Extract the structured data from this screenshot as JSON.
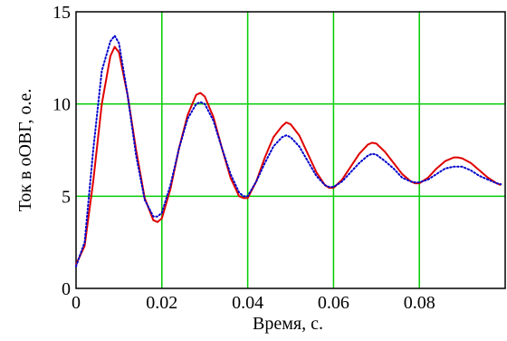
{
  "chart_data": {
    "type": "line",
    "xlabel": "Время, с.",
    "ylabel": "Ток в оОВГ, о.е.",
    "xlim": [
      0,
      0.1
    ],
    "ylim": [
      0,
      15
    ],
    "x_ticks": [
      0,
      0.02,
      0.04,
      0.06,
      0.08
    ],
    "x_tick_labels": [
      "0",
      "0.02",
      "0.04",
      "0.06",
      "0.08"
    ],
    "y_ticks": [
      0,
      5,
      10,
      15
    ],
    "y_tick_labels": [
      "0",
      "5",
      "10",
      "15"
    ],
    "grid": true,
    "colors": {
      "grid": "#00cc00",
      "frame": "#000000"
    },
    "series": [
      {
        "style": "solid",
        "color": "#e00000",
        "x": [
          0,
          0.002,
          0.004,
          0.006,
          0.008,
          0.009,
          0.01,
          0.012,
          0.014,
          0.016,
          0.018,
          0.019,
          0.02,
          0.022,
          0.024,
          0.026,
          0.028,
          0.029,
          0.03,
          0.032,
          0.034,
          0.036,
          0.038,
          0.039,
          0.04,
          0.042,
          0.044,
          0.046,
          0.048,
          0.049,
          0.05,
          0.052,
          0.054,
          0.056,
          0.058,
          0.059,
          0.06,
          0.062,
          0.064,
          0.066,
          0.068,
          0.069,
          0.07,
          0.072,
          0.074,
          0.076,
          0.078,
          0.079,
          0.08,
          0.082,
          0.084,
          0.086,
          0.088,
          0.089,
          0.09,
          0.092,
          0.094,
          0.096,
          0.098,
          0.099
        ],
        "y": [
          1.3,
          2.3,
          5.8,
          10.0,
          12.6,
          13.1,
          12.8,
          10.5,
          7.5,
          4.9,
          3.7,
          3.6,
          3.8,
          5.4,
          7.6,
          9.4,
          10.5,
          10.6,
          10.4,
          9.3,
          7.6,
          6.0,
          5.0,
          4.9,
          4.9,
          5.8,
          7.1,
          8.2,
          8.8,
          9.0,
          8.9,
          8.3,
          7.3,
          6.3,
          5.6,
          5.45,
          5.45,
          5.9,
          6.6,
          7.3,
          7.8,
          7.9,
          7.85,
          7.4,
          6.8,
          6.2,
          5.8,
          5.7,
          5.7,
          6.0,
          6.5,
          6.9,
          7.1,
          7.1,
          7.05,
          6.8,
          6.4,
          6.0,
          5.7,
          5.6
        ]
      },
      {
        "style": "dotted",
        "color": "#0000cc",
        "x": [
          0,
          0.002,
          0.004,
          0.006,
          0.008,
          0.009,
          0.01,
          0.012,
          0.014,
          0.016,
          0.018,
          0.019,
          0.02,
          0.022,
          0.024,
          0.026,
          0.028,
          0.029,
          0.03,
          0.032,
          0.034,
          0.036,
          0.038,
          0.039,
          0.04,
          0.042,
          0.044,
          0.046,
          0.048,
          0.049,
          0.05,
          0.052,
          0.054,
          0.056,
          0.058,
          0.059,
          0.06,
          0.062,
          0.064,
          0.066,
          0.068,
          0.069,
          0.07,
          0.072,
          0.074,
          0.076,
          0.078,
          0.079,
          0.08,
          0.082,
          0.084,
          0.086,
          0.088,
          0.089,
          0.09,
          0.092,
          0.094,
          0.096,
          0.098,
          0.099
        ],
        "y": [
          1.2,
          2.5,
          7.5,
          11.8,
          13.4,
          13.7,
          13.3,
          10.5,
          7.2,
          4.8,
          3.9,
          3.9,
          4.1,
          5.6,
          7.6,
          9.2,
          10.0,
          10.1,
          10.0,
          9.1,
          7.6,
          6.2,
          5.2,
          5.0,
          5.0,
          5.8,
          6.8,
          7.7,
          8.2,
          8.3,
          8.2,
          7.7,
          6.9,
          6.1,
          5.6,
          5.5,
          5.5,
          5.8,
          6.3,
          6.8,
          7.2,
          7.3,
          7.25,
          6.9,
          6.5,
          6.0,
          5.8,
          5.75,
          5.75,
          5.9,
          6.2,
          6.5,
          6.6,
          6.6,
          6.6,
          6.4,
          6.1,
          5.9,
          5.7,
          5.65
        ]
      }
    ]
  }
}
